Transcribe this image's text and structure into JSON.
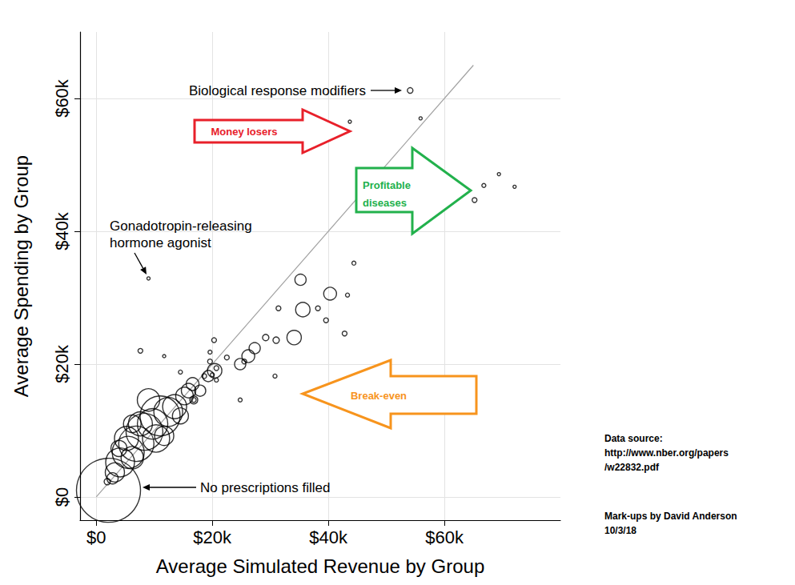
{
  "chart_data": {
    "type": "scatter",
    "x_label": "Average Simulated Revenue by Group",
    "y_label": "Average Spending by Group",
    "xlim": [
      -2800,
      80000
    ],
    "ylim": [
      -3500,
      70000
    ],
    "xticks": [
      {
        "value": 0,
        "label": "$0"
      },
      {
        "value": 20000,
        "label": "$20k"
      },
      {
        "value": 40000,
        "label": "$40k"
      },
      {
        "value": 60000,
        "label": "$60k"
      }
    ],
    "yticks": [
      {
        "value": 0,
        "label": "$0"
      },
      {
        "value": 20000,
        "label": "$20k"
      },
      {
        "value": 40000,
        "label": "$40k"
      },
      {
        "value": 60000,
        "label": "$60k"
      }
    ],
    "grid": true,
    "series": [
      {
        "type": "scatter",
        "marker": "circle",
        "color": "#000000",
        "x": [
          2100,
          1900,
          4100,
          3200,
          5500,
          6900,
          5200,
          8300,
          9700,
          11000,
          7600,
          12400,
          13500,
          10300,
          6200,
          9000,
          15200,
          14500,
          15900,
          11700,
          3900,
          6200,
          2800,
          16600,
          17900,
          20400,
          19300,
          16800,
          24800,
          26200,
          27300,
          29200,
          31000,
          34100,
          35600,
          35200,
          40300,
          54100,
          43700,
          55900,
          66800,
          65200,
          69400,
          72100,
          9000,
          7600,
          11700,
          44400,
          38200,
          39600,
          31400,
          43300,
          42800,
          25500,
          30800,
          24800,
          20300,
          19600,
          19600,
          20700,
          20000,
          18600,
          20700,
          22500,
          14500,
          16800
        ],
        "values": [
          1000,
          2300,
          5200,
          3700,
          6700,
          8000,
          8800,
          9800,
          11000,
          12200,
          11000,
          12800,
          13600,
          8800,
          5900,
          14600,
          15200,
          12200,
          16000,
          9200,
          7300,
          11000,
          2800,
          17000,
          16000,
          19000,
          18200,
          14600,
          20000,
          21200,
          22400,
          24000,
          23600,
          24000,
          28200,
          32700,
          30600,
          61200,
          56500,
          57000,
          46900,
          44700,
          48600,
          46700,
          32900,
          22000,
          21200,
          35200,
          28400,
          26600,
          28400,
          30400,
          24600,
          20400,
          18200,
          14600,
          23600,
          21800,
          20400,
          19400,
          18400,
          18200,
          17600,
          21000,
          18800,
          14600
        ],
        "sizes": [
          80,
          8,
          36,
          24,
          40,
          44,
          30,
          46,
          38,
          50,
          30,
          36,
          30,
          34,
          28,
          28,
          22,
          20,
          18,
          24,
          20,
          22,
          14,
          16,
          14,
          18,
          14,
          10,
          14,
          16,
          14,
          8,
          8,
          18,
          18,
          14,
          16,
          7,
          4,
          4,
          5,
          6,
          4,
          4,
          4,
          6,
          4,
          5,
          6,
          6,
          6,
          5,
          6,
          6,
          5,
          5,
          6,
          5,
          6,
          6,
          5,
          6,
          5,
          6,
          5,
          6
        ]
      },
      {
        "type": "line",
        "color": "#a0a0a0",
        "x": [
          0,
          65000
        ],
        "values": [
          0,
          65000
        ]
      }
    ],
    "annotations": [
      {
        "text": "Biological response modifiers",
        "color": "#000000"
      },
      {
        "text": "Gonadotropin-releasing\nhormone agonist",
        "color": "#000000"
      },
      {
        "text": "No prescriptions filled",
        "color": "#000000"
      },
      {
        "text": "Money losers",
        "color": "#e8202a"
      },
      {
        "text": "Profitable\ndiseases",
        "color": "#22b14c"
      },
      {
        "text": "Break-even",
        "color": "#f7941d"
      },
      {
        "text": "Data source:\nhttp://www.nber.org/papers\n/w22832.pdf",
        "color": "#000000"
      },
      {
        "text": "Mark-ups by David Anderson\n10/3/18",
        "color": "#000000"
      }
    ]
  }
}
